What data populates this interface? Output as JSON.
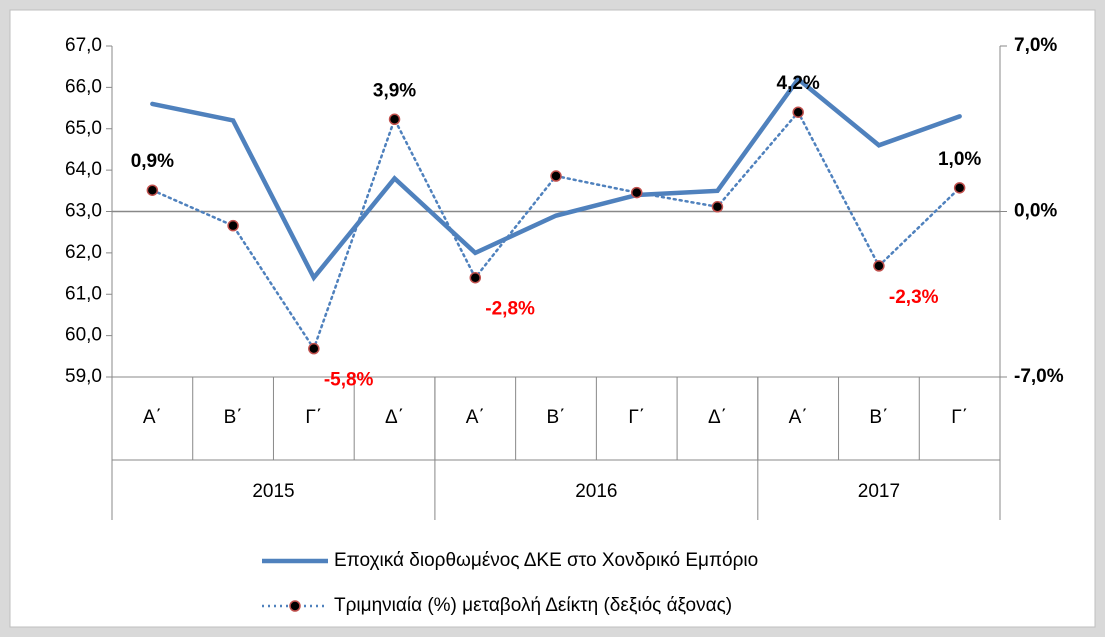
{
  "chart_data": {
    "type": "line",
    "categories": [
      "Α΄",
      "Β΄",
      "Γ΄",
      "Δ΄",
      "Α΄",
      "Β΄",
      "Γ΄",
      "Δ΄",
      "Α΄",
      "Β΄",
      "Γ΄"
    ],
    "groups": [
      {
        "label": "2015",
        "span": 4
      },
      {
        "label": "2016",
        "span": 4
      },
      {
        "label": "2017",
        "span": 3
      }
    ],
    "series": [
      {
        "name": "Εποχικά διορθωμένος ΔΚΕ στο Χονδρικό Εμπόριο",
        "color": "#4f81bd",
        "style": "solid",
        "values": [
          65.6,
          65.2,
          61.4,
          63.8,
          62.0,
          62.9,
          63.4,
          63.5,
          66.2,
          64.6,
          65.3
        ]
      },
      {
        "name": "Τριμηνιαία (%) μεταβολή Δείκτη (δεξιός άξονας)",
        "color": "#4f81bd",
        "style": "dotted",
        "axis": "y2",
        "marker_fill": "#000000",
        "marker_edge": "#c0504d",
        "values": [
          0.9,
          -0.6,
          -5.8,
          3.9,
          -2.8,
          1.5,
          0.8,
          0.2,
          4.2,
          -2.3,
          1.0
        ],
        "value_labels": [
          "0,9%",
          null,
          "-5,8%",
          "3,9%",
          "-2,8%",
          null,
          null,
          null,
          "4,2%",
          "-2,3%",
          "1,0%"
        ]
      }
    ],
    "positive_label_color": "#000000",
    "negative_label_color": "#ff0000",
    "ylim": [
      59,
      67
    ],
    "yticks": [
      {
        "value": 59,
        "label": "59,0"
      },
      {
        "value": 60,
        "label": "60,0"
      },
      {
        "value": 61,
        "label": "61,0"
      },
      {
        "value": 62,
        "label": "62,0"
      },
      {
        "value": 63,
        "label": "63,0"
      },
      {
        "value": 64,
        "label": "64,0"
      },
      {
        "value": 65,
        "label": "65,0"
      },
      {
        "value": 66,
        "label": "66,0"
      },
      {
        "value": 67,
        "label": "67,0"
      }
    ],
    "y2lim": [
      -7,
      7
    ],
    "y2ticks": [
      {
        "value": -7,
        "label": "-7,0%"
      },
      {
        "value": 0,
        "label": "0,0%"
      },
      {
        "value": 7,
        "label": "7,0%"
      }
    ],
    "legend": "bottom"
  }
}
